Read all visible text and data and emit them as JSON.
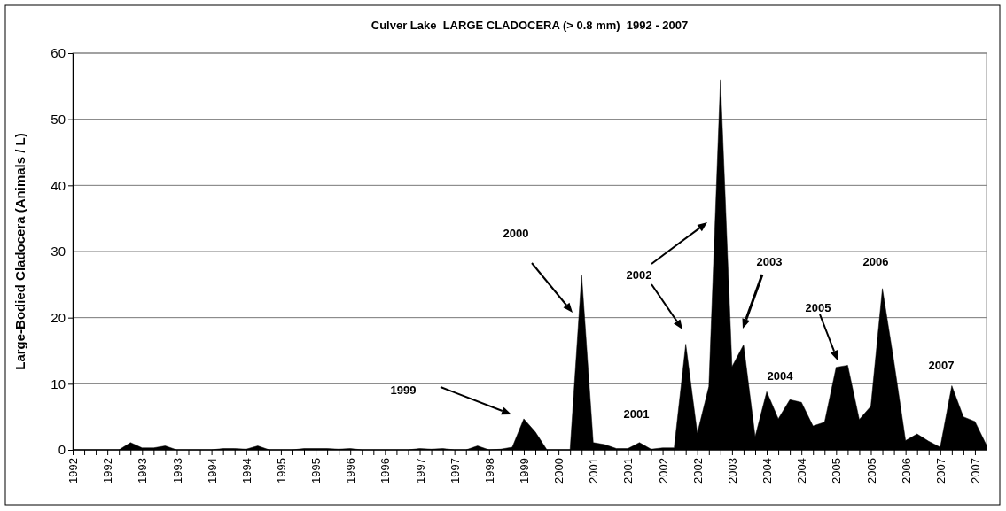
{
  "chart_data": {
    "type": "area",
    "title": "Culver Lake  LARGE CLADOCERA (> 0.8 mm)  1992 - 2007",
    "ylabel": "Large-Bodied Cladocera (Animals / L)",
    "categories": [
      "1992",
      null,
      null,
      "1992",
      null,
      null,
      "1993",
      null,
      null,
      "1993",
      null,
      null,
      "1994",
      null,
      null,
      "1994",
      null,
      null,
      "1995",
      null,
      null,
      "1995",
      null,
      null,
      "1996",
      null,
      null,
      "1996",
      null,
      null,
      "1997",
      null,
      null,
      "1997",
      null,
      null,
      "1998",
      null,
      null,
      "1999",
      null,
      null,
      "2000",
      null,
      null,
      "2001",
      null,
      null,
      "2001",
      null,
      null,
      "2002",
      null,
      null,
      "2002",
      null,
      null,
      "2003",
      null,
      null,
      "2004",
      null,
      null,
      "2004",
      null,
      null,
      "2005",
      null,
      null,
      "2005",
      null,
      null,
      "2006",
      null,
      null,
      "2007",
      null,
      null,
      "2007",
      null
    ],
    "series": [
      {
        "color": "#000000",
        "values": [
          0,
          0,
          0,
          0,
          0,
          1.1,
          0.3,
          0.3,
          0.6,
          0,
          0,
          0,
          0,
          0.2,
          0.2,
          0.1,
          0.6,
          0,
          0,
          0,
          0.2,
          0.2,
          0.2,
          0.1,
          0.2,
          0,
          0,
          0,
          0,
          0,
          0.2,
          0.1,
          0.2,
          0,
          0,
          0.6,
          0,
          0.1,
          0.4,
          4.7,
          2.7,
          0,
          0,
          0,
          26.5,
          1.1,
          0.8,
          0.2,
          0.2,
          1.1,
          0.1,
          0.3,
          0.3,
          16,
          2.5,
          9.6,
          56,
          12.6,
          15.9,
          2,
          8.8,
          4.7,
          7.6,
          7.2,
          3.6,
          4.2,
          12.5,
          12.8,
          4.6,
          6.6,
          24.4,
          13.3,
          1.4,
          2.4,
          1.3,
          0.4,
          9.7,
          5,
          4.3,
          0.7
        ]
      }
    ],
    "ylim": [
      0,
      60
    ],
    "yticks": [
      0,
      10,
      20,
      30,
      40,
      50,
      60
    ],
    "grid": "y",
    "annotations": [
      "2000",
      "1999",
      "2001",
      "2002",
      "2003",
      "2004",
      "2005",
      "2006",
      "2007"
    ]
  }
}
